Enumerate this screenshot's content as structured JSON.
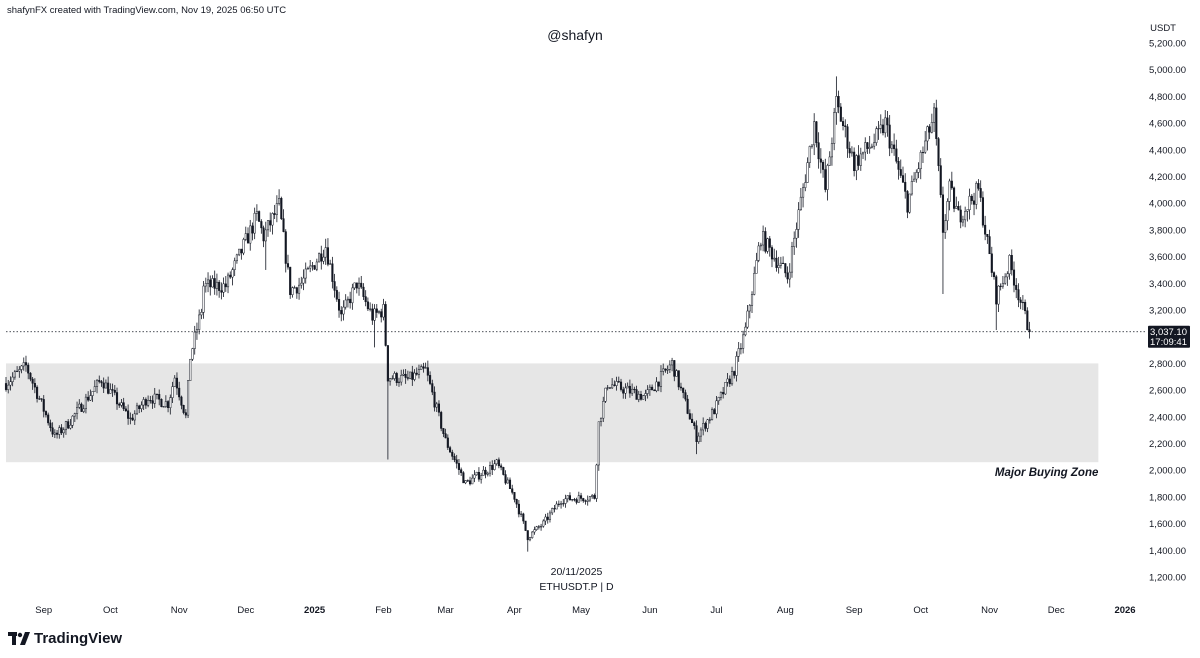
{
  "header": {
    "credit": "shafynFX created with TradingView.com, Nov 19, 2025 06:50 UTC"
  },
  "watermark": {
    "author": "@shafyn"
  },
  "footer": {
    "date": "20/11/2025",
    "symbol": "ETHUSDT.P | D",
    "brand": "TradingView"
  },
  "chart_data": {
    "type": "candlestick",
    "unit": "USDT",
    "ylim": [
      1100,
      5300
    ],
    "y_ticks": [
      1200,
      1400,
      1600,
      1800,
      2000,
      2200,
      2400,
      2600,
      2800,
      3000,
      3200,
      3400,
      3600,
      3800,
      4000,
      4200,
      4400,
      4600,
      4800,
      5000,
      5200
    ],
    "y_tick_labels": [
      "1,200.00",
      "1,400.00",
      "1,600.00",
      "1,800.00",
      "2,000.00",
      "2,200.00",
      "2,400.00",
      "2,600.00",
      "2,800.00",
      "3,000.00",
      "3,200.00",
      "3,400.00",
      "3,600.00",
      "3,800.00",
      "4,000.00",
      "4,200.00",
      "4,400.00",
      "4,600.00",
      "4,800.00",
      "5,000.00",
      "5,200.00"
    ],
    "x_range": [
      "2024-08-15",
      "2026-01-10"
    ],
    "x_ticks": [
      {
        "date": "2024-09-01",
        "label": "Sep",
        "bold": false
      },
      {
        "date": "2024-10-01",
        "label": "Oct",
        "bold": false
      },
      {
        "date": "2024-11-01",
        "label": "Nov",
        "bold": false
      },
      {
        "date": "2024-12-01",
        "label": "Dec",
        "bold": false
      },
      {
        "date": "2025-01-01",
        "label": "2025",
        "bold": true
      },
      {
        "date": "2025-02-01",
        "label": "Feb",
        "bold": false
      },
      {
        "date": "2025-03-01",
        "label": "Mar",
        "bold": false
      },
      {
        "date": "2025-04-01",
        "label": "Apr",
        "bold": false
      },
      {
        "date": "2025-05-01",
        "label": "May",
        "bold": false
      },
      {
        "date": "2025-06-01",
        "label": "Jun",
        "bold": false
      },
      {
        "date": "2025-07-01",
        "label": "Jul",
        "bold": false
      },
      {
        "date": "2025-08-01",
        "label": "Aug",
        "bold": false
      },
      {
        "date": "2025-09-01",
        "label": "Sep",
        "bold": false
      },
      {
        "date": "2025-10-01",
        "label": "Oct",
        "bold": false
      },
      {
        "date": "2025-11-01",
        "label": "Nov",
        "bold": false
      },
      {
        "date": "2025-12-01",
        "label": "Dec",
        "bold": false
      },
      {
        "date": "2026-01-01",
        "label": "2026",
        "bold": true
      }
    ],
    "zone": {
      "label": "Major Buying Zone",
      "low": 2060,
      "high": 2800,
      "start": "2024-08-15",
      "end": "2025-12-20",
      "color": "#e6e6e6"
    },
    "current_price": {
      "value": 3037.1,
      "label": "3,037.10",
      "countdown": "17:09:41"
    },
    "anchors": [
      [
        "2024-08-15",
        2650
      ],
      [
        "2024-08-24",
        2780
      ],
      [
        "2024-09-06",
        2250
      ],
      [
        "2024-09-12",
        2350
      ],
      [
        "2024-09-27",
        2680
      ],
      [
        "2024-10-10",
        2380
      ],
      [
        "2024-10-18",
        2550
      ],
      [
        "2024-10-27",
        2500
      ],
      [
        "2024-10-30",
        2700
      ],
      [
        "2024-11-04",
        2400
      ],
      [
        "2024-11-06",
        2850
      ],
      [
        "2024-11-11",
        3200
      ],
      [
        "2024-11-12",
        3380
      ],
      [
        "2024-11-22",
        3380
      ],
      [
        "2024-12-06",
        3900
      ],
      [
        "2024-12-09",
        3750
      ],
      [
        "2024-12-16",
        3980
      ],
      [
        "2024-12-21",
        3350
      ],
      [
        "2024-12-26",
        3400
      ],
      [
        "2025-01-06",
        3680
      ],
      [
        "2025-01-13",
        3150
      ],
      [
        "2025-01-20",
        3400
      ],
      [
        "2025-01-27",
        3150
      ],
      [
        "2025-02-01",
        3200
      ],
      [
        "2025-02-03",
        2700
      ],
      [
        "2025-02-12",
        2680
      ],
      [
        "2025-02-20",
        2750
      ],
      [
        "2025-03-01",
        2220
      ],
      [
        "2025-03-10",
        1900
      ],
      [
        "2025-03-24",
        2050
      ],
      [
        "2025-04-01",
        1800
      ],
      [
        "2025-04-07",
        1500
      ],
      [
        "2025-04-14",
        1600
      ],
      [
        "2025-04-22",
        1780
      ],
      [
        "2025-05-07",
        1800
      ],
      [
        "2025-05-09",
        2350
      ],
      [
        "2025-05-13",
        2650
      ],
      [
        "2025-05-30",
        2550
      ],
      [
        "2025-06-11",
        2800
      ],
      [
        "2025-06-22",
        2250
      ],
      [
        "2025-06-30",
        2450
      ],
      [
        "2025-07-09",
        2750
      ],
      [
        "2025-07-14",
        3050
      ],
      [
        "2025-07-21",
        3750
      ],
      [
        "2025-08-02",
        3450
      ],
      [
        "2025-08-11",
        4300
      ],
      [
        "2025-08-14",
        4600
      ],
      [
        "2025-08-19",
        4100
      ],
      [
        "2025-08-24",
        4750
      ],
      [
        "2025-09-01",
        4300
      ],
      [
        "2025-09-12",
        4500
      ],
      [
        "2025-09-15",
        4600
      ],
      [
        "2025-09-25",
        4000
      ],
      [
        "2025-10-04",
        4500
      ],
      [
        "2025-10-07",
        4650
      ],
      [
        "2025-10-11",
        3800
      ],
      [
        "2025-10-14",
        4100
      ],
      [
        "2025-10-18",
        3900
      ],
      [
        "2025-10-27",
        4100
      ],
      [
        "2025-11-04",
        3300
      ],
      [
        "2025-11-10",
        3550
      ],
      [
        "2025-11-19",
        3037
      ]
    ]
  }
}
